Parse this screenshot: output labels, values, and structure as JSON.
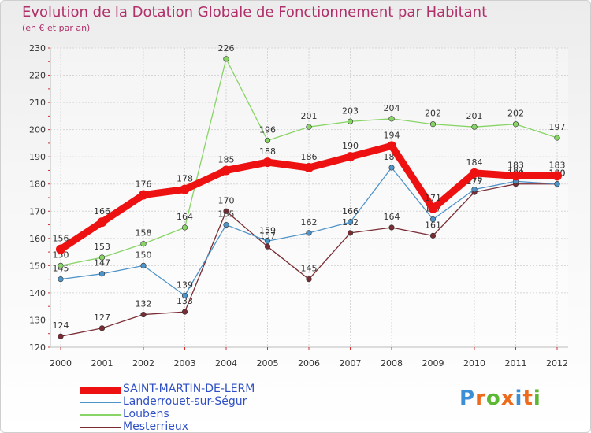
{
  "title": "Evolution de la Dotation Globale de Fonctionnement par Habitant",
  "subtitle": "(en € et par an)",
  "chart_data": {
    "type": "line",
    "x": [
      "2000",
      "2001",
      "2002",
      "2003",
      "2004",
      "2005",
      "2006",
      "2007",
      "2008",
      "2009",
      "2010",
      "2011",
      "2012"
    ],
    "ylim": [
      120,
      230
    ],
    "yticks": [
      120,
      130,
      140,
      150,
      160,
      170,
      180,
      190,
      200,
      210,
      220,
      230
    ],
    "grid": true,
    "legend_position": "bottom-left",
    "series": [
      {
        "name": "Mesterrieux",
        "color": "#7a2c34",
        "values": [
          124,
          127,
          132,
          133,
          170,
          157,
          145,
          162,
          164,
          161,
          177,
          180,
          180
        ]
      },
      {
        "name": "Landerrouet-sur-Ségur",
        "color": "#4f94c8",
        "values": [
          145,
          147,
          150,
          139,
          165,
          159,
          162,
          166,
          186,
          167,
          178,
          181,
          180
        ]
      },
      {
        "name": "Loubens",
        "color": "#88d466",
        "values": [
          150,
          153,
          158,
          164,
          226,
          196,
          201,
          203,
          204,
          202,
          201,
          202,
          197
        ]
      },
      {
        "name": "SAINT-MARTIN-DE-LERM",
        "color": "#ee1111",
        "values": [
          156,
          166,
          176,
          178,
          185,
          188,
          186,
          190,
          194,
          171,
          184,
          183,
          183
        ]
      }
    ]
  },
  "legend": [
    {
      "label": "SAINT-MARTIN-DE-LERM",
      "color": "#ee1111"
    },
    {
      "label": "Landerrouet-sur-Ségur",
      "color": "#4f94c8"
    },
    {
      "label": "Loubens",
      "color": "#88d466"
    },
    {
      "label": "Mesterrieux",
      "color": "#7a2c34"
    }
  ],
  "logo": {
    "text": "Proxiti",
    "colors": [
      "#3b8fd6",
      "#ee6a1c",
      "#5cb832",
      "#ee6a1c",
      "#3b8fd6",
      "#ee6a1c",
      "#5cb832"
    ]
  }
}
